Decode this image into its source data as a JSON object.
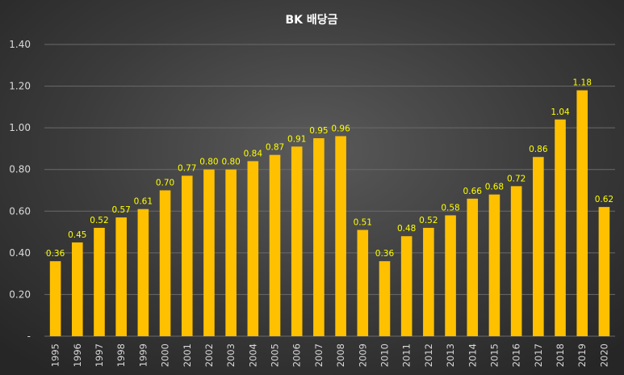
{
  "chart_data": {
    "type": "bar",
    "title": "BK 배당금",
    "categories": [
      "1995",
      "1996",
      "1997",
      "1998",
      "1999",
      "2000",
      "2001",
      "2002",
      "2003",
      "2004",
      "2005",
      "2006",
      "2007",
      "2008",
      "2009",
      "2010",
      "2011",
      "2012",
      "2013",
      "2014",
      "2015",
      "2016",
      "2017",
      "2018",
      "2019",
      "2020"
    ],
    "values": [
      0.36,
      0.45,
      0.52,
      0.57,
      0.61,
      0.7,
      0.77,
      0.8,
      0.8,
      0.84,
      0.87,
      0.91,
      0.95,
      0.96,
      0.51,
      0.36,
      0.48,
      0.52,
      0.58,
      0.66,
      0.68,
      0.72,
      0.86,
      1.04,
      1.18,
      0.62
    ],
    "value_labels": [
      "0.36",
      "0.45",
      "0.52",
      "0.57",
      "0.61",
      "0.70",
      "0.77",
      "0.80",
      "0.80",
      "0.84",
      "0.87",
      "0.91",
      "0.95",
      "0.96",
      "0.51",
      "0.36",
      "0.48",
      "0.52",
      "0.58",
      "0.66",
      "0.68",
      "0.72",
      "0.86",
      "1.04",
      "1.18",
      "0.62"
    ],
    "ylim": [
      0,
      1.4
    ],
    "yticks": [
      {
        "value": 0,
        "label": "-"
      },
      {
        "value": 0.2,
        "label": "0.20"
      },
      {
        "value": 0.4,
        "label": "0.40"
      },
      {
        "value": 0.6,
        "label": "0.60"
      },
      {
        "value": 0.8,
        "label": "0.80"
      },
      {
        "value": 1.0,
        "label": "1.00"
      },
      {
        "value": 1.2,
        "label": "1.20"
      },
      {
        "value": 1.4,
        "label": "1.40"
      }
    ],
    "grid": true,
    "legend": "none",
    "bar_color": "#ffc000",
    "label_color": "#ffff00"
  }
}
